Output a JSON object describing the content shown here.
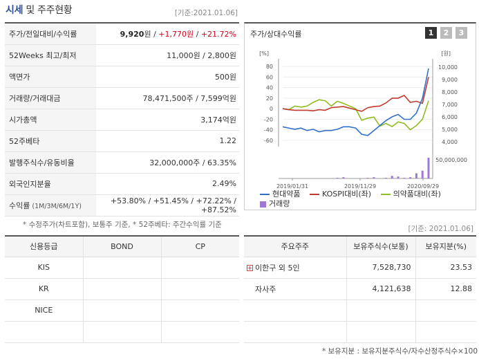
{
  "header": {
    "title_part1": "시세",
    "title_part2": " 및 주주현황",
    "ref_date": "[기준:2021.01.06]"
  },
  "price_table": {
    "rows": [
      {
        "label": "주가/전일대비/수익률",
        "v1": "9,920",
        "u1": "원",
        "sep1": " / ",
        "v2": "+1,770",
        "u2": "원",
        "sep2": " / ",
        "v3": "+21.72%"
      },
      {
        "label": "52Weeks 최고/최저",
        "value": "11,000원 / 2,800원"
      },
      {
        "label": "액면가",
        "value": "500원"
      },
      {
        "label": "거래량/거래대금",
        "value": "78,471,500주 / 7,599억원"
      },
      {
        "label": "시가총액",
        "value": "3,174억원"
      },
      {
        "label": "52주베타",
        "value": "1.22"
      },
      {
        "label": "발행주식수/유동비율",
        "value": "32,000,000주 / 63.35%"
      },
      {
        "label": "외국인지분율",
        "value": "2.49%"
      },
      {
        "label": "수익률",
        "label_small": " (1M/3M/6M/1Y)",
        "value": "+53.80% / +51.45% / +72.22% / +87.52%"
      }
    ],
    "footnote": "* 수정주가(차트포함), 보통주 기준, * 52주베타: 주간수익률 기준"
  },
  "chart": {
    "title": "주가/상대수익률",
    "pages": [
      "1",
      "2",
      "3"
    ],
    "active_page": "1",
    "left_unit": "[%]",
    "right_unit": "[원]",
    "legend": {
      "stock": "현대약품",
      "kospi": "KOSPI대비(좌)",
      "pharma": "의약품대비(좌)",
      "volume": "거래량"
    },
    "colors": {
      "stock": "#2f6fc9",
      "kospi": "#c0392b",
      "pharma": "#8fbc1f",
      "volume": "#9e79d4"
    }
  },
  "chart_data": {
    "type": "line",
    "x_labels": [
      "2019/01/31",
      "2019/11/29",
      "2020/09/29"
    ],
    "left_axis": {
      "unit": "[%]",
      "ticks": [
        80,
        60,
        40,
        20,
        0,
        -20,
        -40,
        -60
      ],
      "range": [
        -72,
        88
      ]
    },
    "right_axis": {
      "unit": "[원]",
      "ticks": [
        "10,000",
        "9,000",
        "8,000",
        "7,000",
        "6,000",
        "5,000",
        "4,000"
      ],
      "range": [
        3600,
        10400
      ]
    },
    "volume_axis": {
      "label": "50,000,000"
    },
    "series": [
      {
        "name": "현대약품",
        "axis": "right",
        "values": [
          5200,
          5100,
          5000,
          5100,
          4900,
          5000,
          4800,
          4900,
          4900,
          5000,
          5200,
          5200,
          5100,
          4600,
          4500,
          4900,
          5300,
          5700,
          6000,
          6200,
          5800,
          5800,
          6300,
          7500,
          9900
        ]
      },
      {
        "name": "KOSPI대비(좌)",
        "axis": "left",
        "values": [
          0,
          -2,
          -3,
          -3,
          -3,
          -4,
          -2,
          -3,
          2,
          3,
          4,
          1,
          -2,
          -5,
          2,
          4,
          5,
          11,
          20,
          20,
          25,
          12,
          14,
          10,
          60
        ]
      },
      {
        "name": "의약품대비(좌)",
        "axis": "left",
        "values": [
          0,
          -2,
          5,
          3,
          5,
          12,
          17,
          15,
          5,
          14,
          10,
          5,
          0,
          -22,
          -18,
          -16,
          -33,
          -28,
          -34,
          -25,
          -28,
          -40,
          -32,
          -20,
          15
        ]
      },
      {
        "name": "거래량",
        "type": "bar",
        "values": [
          0,
          0,
          0,
          0,
          0,
          0,
          0,
          0,
          0,
          1,
          2,
          0,
          0,
          0,
          1,
          2,
          0,
          1,
          4,
          3,
          1,
          2,
          8,
          12,
          32
        ]
      }
    ]
  },
  "ref_date2": "[기준: 2021.01.06]",
  "credit_table": {
    "headers": [
      "신용등급",
      "BOND",
      "CP"
    ],
    "rows": [
      "KIS",
      "KR",
      "NICE",
      ""
    ]
  },
  "holder_table": {
    "headers": [
      "주요주주",
      "보유주식수(보통)",
      "보유지분(%)"
    ],
    "rows": [
      {
        "name": "이한구 외 5인",
        "shares": "7,528,730",
        "pct": "23.53"
      },
      {
        "name": "자사주",
        "shares": "4,121,638",
        "pct": "12.88"
      }
    ],
    "plus_glyph": "+",
    "footnote": "* 보유지분 : 보유지분주식수/자수산정주식수×100"
  }
}
